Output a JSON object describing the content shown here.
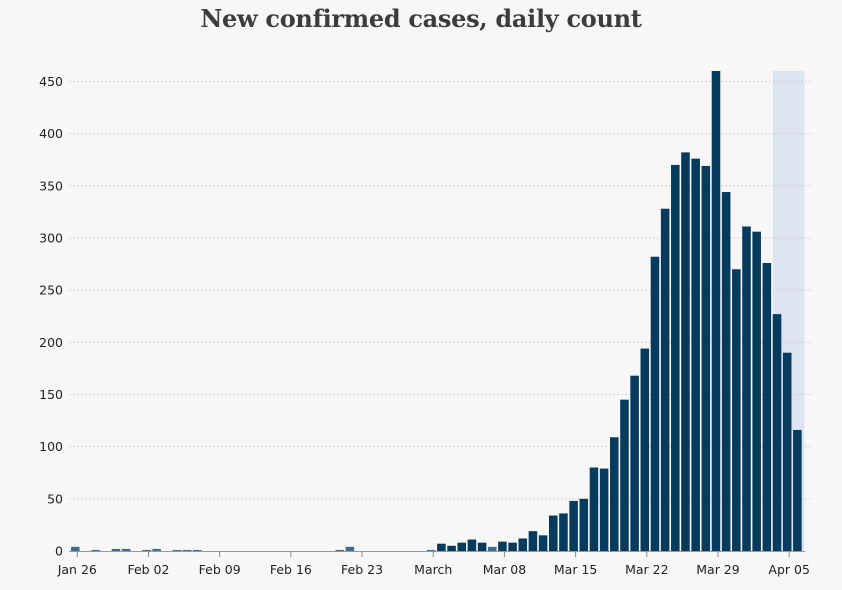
{
  "chart_data": {
    "type": "bar",
    "title": "New confirmed cases, daily count",
    "xlabel": "",
    "ylabel": "",
    "ylim": [
      0,
      460
    ],
    "yticks": [
      0,
      50,
      100,
      150,
      200,
      250,
      300,
      350,
      400,
      450
    ],
    "grid": true,
    "x_start": "Jan 26",
    "x_tick_labels": [
      "Jan 26",
      "Feb 02",
      "Feb 09",
      "Feb 16",
      "Feb 23",
      "March",
      "Mar 08",
      "Mar 15",
      "Mar 22",
      "Mar 29",
      "Apr 05"
    ],
    "values": [
      4,
      0,
      1,
      0,
      2,
      2,
      0,
      1,
      2,
      0,
      1,
      1,
      1,
      0,
      0,
      0,
      0,
      0,
      0,
      0,
      0,
      0,
      0,
      0,
      0,
      0,
      1,
      4,
      0,
      0,
      0,
      0,
      0,
      0,
      0,
      1,
      7,
      5,
      8,
      11,
      8,
      4,
      9,
      8,
      12,
      19,
      15,
      34,
      36,
      48,
      50,
      80,
      79,
      109,
      145,
      168,
      194,
      282,
      328,
      370,
      382,
      376,
      369,
      460,
      344,
      270,
      311,
      306,
      276,
      227,
      190,
      116
    ],
    "shaded_region_bars": 3,
    "bar_color": "#073b5e",
    "shade_color": "#dde3f3"
  }
}
